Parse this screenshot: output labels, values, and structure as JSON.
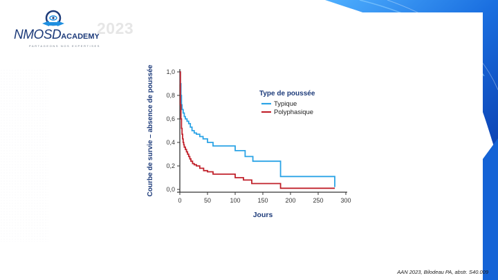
{
  "brand": {
    "name": "NMOSD",
    "name_suffix": "ACADEMY",
    "tagline": "PARTAGEONS NOS EXPERTISES",
    "year": "2023"
  },
  "colors": {
    "brand_navy": "#1d3b7a",
    "accent_blue": "#1f8fe0",
    "typique": "#2aa3e6",
    "polyphasique": "#c0202a",
    "axis": "#333333"
  },
  "citation": "AAN 2023, Bilodeau PA, abstr. S40.009",
  "chart_data": {
    "type": "line",
    "step": true,
    "xlabel": "Jours",
    "ylabel": "Courbe de survie – absence de poussée",
    "xlim": [
      0,
      300
    ],
    "ylim": [
      0,
      1.0
    ],
    "xticks": [
      "0",
      "50",
      "100",
      "150",
      "200",
      "250",
      "300"
    ],
    "yticks": [
      "0,0",
      "0,2",
      "0,4",
      "0,6",
      "0,8",
      "1,0"
    ],
    "legend_title": "Type de poussée",
    "legend_position": "top-right",
    "grid": false,
    "series": [
      {
        "name": "Typique",
        "color": "#2aa3e6",
        "x": [
          0,
          1,
          2,
          3,
          4,
          6,
          8,
          10,
          13,
          16,
          19,
          22,
          26,
          30,
          36,
          42,
          50,
          60,
          100,
          118,
          132,
          182,
          280
        ],
        "y": [
          1.0,
          0.9,
          0.8,
          0.72,
          0.68,
          0.65,
          0.62,
          0.6,
          0.58,
          0.56,
          0.53,
          0.5,
          0.48,
          0.47,
          0.45,
          0.43,
          0.4,
          0.37,
          0.33,
          0.28,
          0.24,
          0.11,
          0.02
        ]
      },
      {
        "name": "Polyphasique",
        "color": "#c0202a",
        "x": [
          0,
          1,
          2,
          3,
          4,
          5,
          6,
          7,
          8,
          10,
          12,
          14,
          16,
          18,
          20,
          23,
          26,
          30,
          36,
          43,
          50,
          60,
          100,
          115,
          130,
          182,
          280
        ],
        "y": [
          1.0,
          0.72,
          0.6,
          0.52,
          0.47,
          0.43,
          0.4,
          0.38,
          0.36,
          0.34,
          0.32,
          0.3,
          0.28,
          0.26,
          0.24,
          0.22,
          0.21,
          0.2,
          0.18,
          0.16,
          0.15,
          0.13,
          0.1,
          0.08,
          0.05,
          0.01,
          0.01
        ]
      }
    ]
  }
}
